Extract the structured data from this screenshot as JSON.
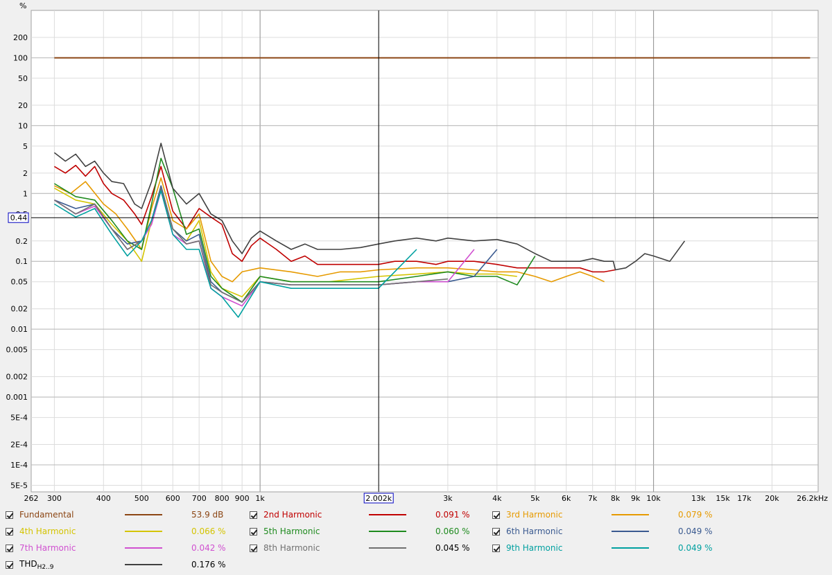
{
  "chart_data": {
    "type": "line",
    "ylabel": "%",
    "y_scale": "log",
    "x_scale": "log",
    "ylim": [
      4e-05,
      500
    ],
    "xlim": [
      262,
      26200
    ],
    "y_ticks": [
      {
        "v": 200,
        "label": "200"
      },
      {
        "v": 100,
        "label": "100"
      },
      {
        "v": 50,
        "label": "50"
      },
      {
        "v": 20,
        "label": "20"
      },
      {
        "v": 10,
        "label": "10"
      },
      {
        "v": 5,
        "label": "5"
      },
      {
        "v": 2,
        "label": "2"
      },
      {
        "v": 1,
        "label": "1"
      },
      {
        "v": 0.5,
        "label": "0.5"
      },
      {
        "v": 0.2,
        "label": "0.2"
      },
      {
        "v": 0.1,
        "label": "0.1"
      },
      {
        "v": 0.05,
        "label": "0.05"
      },
      {
        "v": 0.02,
        "label": "0.02"
      },
      {
        "v": 0.01,
        "label": "0.01"
      },
      {
        "v": 0.005,
        "label": "0.005"
      },
      {
        "v": 0.002,
        "label": "0.002"
      },
      {
        "v": 0.001,
        "label": "0.001"
      },
      {
        "v": 0.0005,
        "label": "5E-4"
      },
      {
        "v": 0.0002,
        "label": "2E-4"
      },
      {
        "v": 0.0001,
        "label": "1E-4"
      },
      {
        "v": 5e-05,
        "label": "5E-5"
      }
    ],
    "x_ticks": [
      {
        "v": 262,
        "label": "262"
      },
      {
        "v": 300,
        "label": "300"
      },
      {
        "v": 400,
        "label": "400"
      },
      {
        "v": 500,
        "label": "500"
      },
      {
        "v": 600,
        "label": "600"
      },
      {
        "v": 700,
        "label": "700"
      },
      {
        "v": 800,
        "label": "800"
      },
      {
        "v": 900,
        "label": "900"
      },
      {
        "v": 1000,
        "label": "1k"
      },
      {
        "v": 3000,
        "label": "3k"
      },
      {
        "v": 4000,
        "label": "4k"
      },
      {
        "v": 5000,
        "label": "5k"
      },
      {
        "v": 6000,
        "label": "6k"
      },
      {
        "v": 7000,
        "label": "7k"
      },
      {
        "v": 8000,
        "label": "8k"
      },
      {
        "v": 9000,
        "label": "9k"
      },
      {
        "v": 10000,
        "label": "10k"
      },
      {
        "v": 13000,
        "label": "13k"
      },
      {
        "v": 15000,
        "label": "15k"
      },
      {
        "v": 17000,
        "label": "17k"
      },
      {
        "v": 20000,
        "label": "20k"
      },
      {
        "v": 26200,
        "label": "26.2kHz"
      }
    ],
    "cursor": {
      "x": 2002,
      "x_label": "2.002k",
      "y": 0.44,
      "y_label": "0.44"
    },
    "grid": true,
    "series": [
      {
        "name": "Fundamental",
        "color": "#8B4513",
        "value": "53.9 dB",
        "x": [
          300,
          25000
        ],
        "y": [
          100,
          100
        ]
      },
      {
        "name": "2nd Harmonic",
        "color": "#c00000",
        "value": "0.091 %",
        "x": [
          300,
          320,
          340,
          360,
          380,
          400,
          420,
          450,
          480,
          500,
          530,
          560,
          600,
          650,
          700,
          750,
          800,
          850,
          900,
          950,
          1000,
          1100,
          1200,
          1300,
          1400,
          1600,
          1800,
          2000,
          2200,
          2500,
          2800,
          3000,
          3500,
          4000,
          4500,
          5000,
          5500,
          6000,
          6500,
          7000,
          7500,
          8000
        ],
        "y": [
          2.5,
          2.0,
          2.6,
          1.8,
          2.5,
          1.4,
          1.0,
          0.8,
          0.5,
          0.35,
          0.9,
          2.5,
          0.55,
          0.3,
          0.6,
          0.45,
          0.35,
          0.13,
          0.1,
          0.17,
          0.22,
          0.15,
          0.1,
          0.12,
          0.09,
          0.09,
          0.09,
          0.09,
          0.1,
          0.1,
          0.09,
          0.1,
          0.1,
          0.09,
          0.08,
          0.08,
          0.08,
          0.08,
          0.08,
          0.07,
          0.07,
          0.075
        ]
      },
      {
        "name": "3rd Harmonic",
        "color": "#e69a00",
        "value": "0.079 %",
        "x": [
          300,
          330,
          360,
          400,
          430,
          460,
          500,
          530,
          560,
          600,
          650,
          700,
          750,
          800,
          850,
          900,
          1000,
          1200,
          1400,
          1600,
          1800,
          2000,
          2500,
          3000,
          3500,
          4000,
          4500,
          5000,
          5500,
          6000,
          6500,
          7000,
          7500
        ],
        "y": [
          1.3,
          1.0,
          1.5,
          0.7,
          0.5,
          0.3,
          0.15,
          0.6,
          1.7,
          0.4,
          0.3,
          0.5,
          0.1,
          0.06,
          0.05,
          0.07,
          0.08,
          0.07,
          0.06,
          0.07,
          0.07,
          0.075,
          0.08,
          0.08,
          0.075,
          0.07,
          0.07,
          0.06,
          0.05,
          0.06,
          0.07,
          0.06,
          0.05
        ]
      },
      {
        "name": "4th Harmonic",
        "color": "#d4c400",
        "value": "0.066 %",
        "x": [
          300,
          340,
          380,
          420,
          460,
          500,
          530,
          560,
          600,
          650,
          700,
          750,
          800,
          900,
          1000,
          1200,
          1500,
          2000,
          2500,
          3000,
          3500,
          4000,
          4500
        ],
        "y": [
          1.2,
          0.8,
          0.7,
          0.35,
          0.2,
          0.1,
          0.4,
          1.2,
          0.3,
          0.2,
          0.4,
          0.07,
          0.04,
          0.03,
          0.06,
          0.05,
          0.05,
          0.06,
          0.065,
          0.07,
          0.065,
          0.065,
          0.06
        ]
      },
      {
        "name": "5th Harmonic",
        "color": "#1e8a1e",
        "value": "0.060 %",
        "x": [
          300,
          340,
          380,
          420,
          460,
          500,
          530,
          560,
          600,
          650,
          700,
          750,
          800,
          900,
          1000,
          1200,
          1500,
          2000,
          2500,
          3000,
          3500,
          4000,
          4500,
          5000
        ],
        "y": [
          1.4,
          0.9,
          0.8,
          0.4,
          0.2,
          0.15,
          0.7,
          3.3,
          1.2,
          0.25,
          0.3,
          0.06,
          0.04,
          0.025,
          0.06,
          0.05,
          0.05,
          0.05,
          0.06,
          0.07,
          0.06,
          0.06,
          0.045,
          0.12
        ]
      },
      {
        "name": "6th Harmonic",
        "color": "#3a5a90",
        "value": "0.049 %",
        "x": [
          300,
          340,
          380,
          420,
          460,
          500,
          530,
          560,
          600,
          650,
          700,
          750,
          800,
          900,
          1000,
          1200,
          1500,
          2000,
          2500,
          3000,
          3500,
          4000
        ],
        "y": [
          0.8,
          0.6,
          0.7,
          0.3,
          0.18,
          0.2,
          0.4,
          1.3,
          0.3,
          0.2,
          0.25,
          0.05,
          0.035,
          0.025,
          0.05,
          0.045,
          0.045,
          0.045,
          0.05,
          0.05,
          0.06,
          0.15
        ]
      },
      {
        "name": "7th Harmonic",
        "color": "#d050d0",
        "value": "0.042 %",
        "x": [
          300,
          340,
          380,
          420,
          460,
          500,
          530,
          560,
          600,
          650,
          700,
          750,
          800,
          900,
          1000,
          1200,
          1500,
          2000,
          2500,
          3000,
          3500
        ],
        "y": [
          0.8,
          0.5,
          0.65,
          0.3,
          0.15,
          0.2,
          0.35,
          1.1,
          0.25,
          0.18,
          0.2,
          0.04,
          0.03,
          0.022,
          0.05,
          0.045,
          0.045,
          0.045,
          0.05,
          0.05,
          0.15
        ]
      },
      {
        "name": "8th Harmonic",
        "color": "#707070",
        "value": "0.045 %",
        "x": [
          300,
          340,
          380,
          420,
          460,
          500,
          530,
          560,
          600,
          650,
          700,
          750,
          800,
          900,
          1000,
          1200,
          1500,
          2000,
          2500,
          3000
        ],
        "y": [
          0.8,
          0.5,
          0.7,
          0.3,
          0.15,
          0.2,
          0.4,
          1.2,
          0.3,
          0.18,
          0.2,
          0.045,
          0.035,
          0.025,
          0.05,
          0.045,
          0.045,
          0.045,
          0.05,
          0.055
        ]
      },
      {
        "name": "9th Harmonic",
        "color": "#00a0a0",
        "value": "0.049 %",
        "x": [
          300,
          340,
          380,
          420,
          460,
          500,
          530,
          560,
          600,
          650,
          700,
          750,
          800,
          880,
          1000,
          1200,
          1500,
          2000,
          2500
        ],
        "y": [
          0.7,
          0.45,
          0.6,
          0.25,
          0.12,
          0.2,
          0.4,
          1.1,
          0.25,
          0.15,
          0.15,
          0.04,
          0.03,
          0.015,
          0.05,
          0.04,
          0.04,
          0.04,
          0.15
        ]
      },
      {
        "name": "THDH2..9",
        "color": "#404040",
        "value": "0.176 %",
        "x": [
          300,
          320,
          340,
          360,
          380,
          400,
          420,
          450,
          480,
          500,
          530,
          560,
          600,
          650,
          700,
          750,
          800,
          850,
          900,
          950,
          1000,
          1100,
          1200,
          1300,
          1400,
          1600,
          1800,
          2000,
          2200,
          2500,
          2800,
          3000,
          3500,
          4000,
          4500,
          5000,
          5500,
          6000,
          6500,
          7000,
          7500,
          7900,
          8000,
          8500,
          9000,
          9500,
          10000,
          11000,
          12000
        ],
        "y": [
          4.0,
          3.0,
          3.8,
          2.5,
          3.0,
          2.0,
          1.5,
          1.4,
          0.7,
          0.6,
          1.5,
          5.5,
          1.2,
          0.7,
          1.0,
          0.5,
          0.4,
          0.2,
          0.13,
          0.22,
          0.28,
          0.2,
          0.15,
          0.18,
          0.15,
          0.15,
          0.16,
          0.18,
          0.2,
          0.22,
          0.2,
          0.22,
          0.2,
          0.21,
          0.18,
          0.13,
          0.1,
          0.1,
          0.1,
          0.11,
          0.1,
          0.1,
          0.075,
          0.08,
          0.1,
          0.13,
          0.12,
          0.1,
          0.2
        ]
      }
    ]
  }
}
